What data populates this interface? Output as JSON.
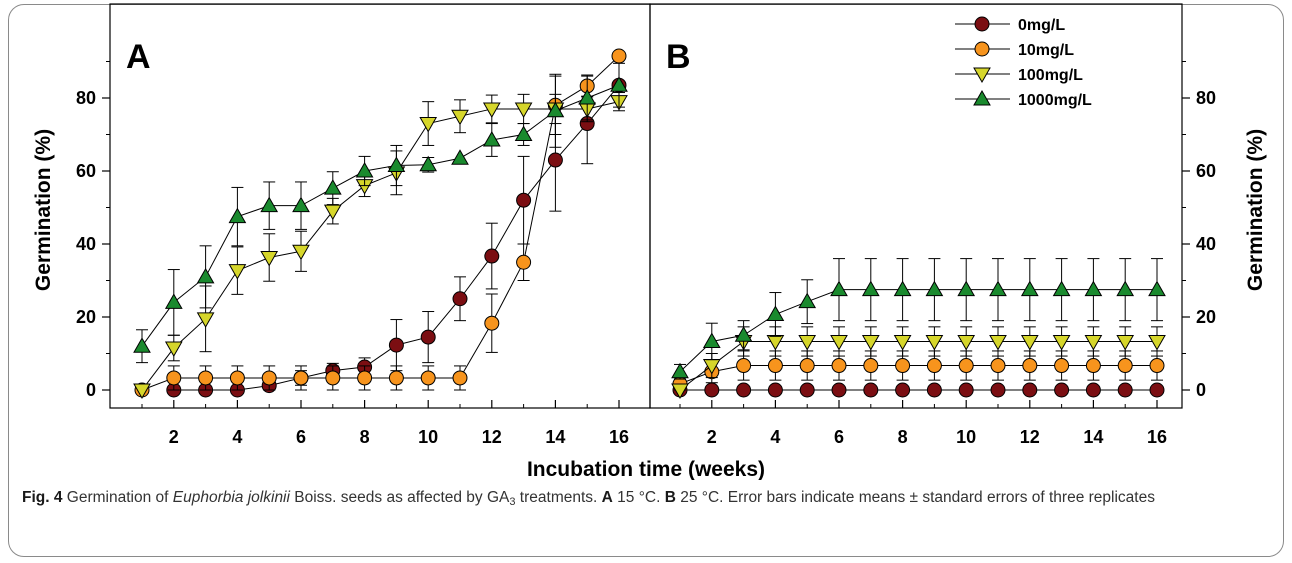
{
  "chart_data": {
    "type": "line",
    "xlabel": "Incubation time (weeks)",
    "ylabel": "Germination (%)",
    "xlim": [
      0,
      17
    ],
    "ylim": [
      -5,
      95
    ],
    "xticks": [
      2,
      4,
      6,
      8,
      10,
      12,
      14,
      16
    ],
    "yticks": [
      0,
      20,
      40,
      60,
      80
    ],
    "legend_position": "top-right of panel B",
    "panels": [
      {
        "label": "A",
        "series": [
          {
            "name": "0mg/L",
            "color": "#7b0e12",
            "marker": "circle",
            "x": [
              2,
              3,
              4,
              5,
              6,
              7,
              8,
              9,
              10,
              11,
              12,
              13,
              14,
              15,
              16
            ],
            "y": [
              0,
              0,
              0,
              1.2,
              3.3,
              5.3,
              6.3,
              12.3,
              14.5,
              25,
              36.7,
              52,
              63,
              73,
              83.5
            ],
            "err": [
              0,
              0,
              0,
              1.2,
              2,
              2,
              2.5,
              7,
              7,
              6,
              9,
              12,
              14,
              11,
              0
            ]
          },
          {
            "name": "10mg/L",
            "color": "#f7941d",
            "marker": "circle",
            "x": [
              1,
              2,
              3,
              4,
              5,
              6,
              7,
              8,
              9,
              10,
              11,
              12,
              13,
              14,
              15,
              16
            ],
            "y": [
              0,
              3.3,
              3.3,
              3.3,
              3.3,
              3.3,
              3.3,
              3.3,
              3.3,
              3.3,
              3.3,
              18.3,
              35,
              78,
              83.3,
              91.5
            ],
            "err": [
              0,
              3.3,
              3.3,
              3.3,
              3.3,
              3.3,
              3.3,
              3.3,
              3.3,
              3.3,
              3.3,
              8,
              5,
              8,
              3,
              0
            ]
          },
          {
            "name": "100mg/L",
            "color": "#d6d62b",
            "marker": "triangle-down",
            "x": [
              1,
              2,
              3,
              4,
              5,
              6,
              7,
              8,
              9,
              10,
              11,
              12,
              13,
              14,
              15,
              16
            ],
            "y": [
              0,
              11.5,
              19.5,
              32.7,
              36.3,
              38,
              49,
              56,
              59.5,
              73,
              75,
              77,
              77,
              77,
              77,
              79
            ],
            "err": [
              0,
              3.5,
              9,
              6.5,
              6.5,
              5.5,
              3.5,
              3,
              6,
              6,
              4.5,
              3.8,
              4,
              4,
              3.5,
              2.5
            ]
          },
          {
            "name": "1000mg/L",
            "color": "#1a8a2e",
            "marker": "triangle-up",
            "x": [
              1,
              2,
              3,
              4,
              5,
              6,
              7,
              8,
              9,
              10,
              11,
              12,
              13,
              14,
              15,
              16
            ],
            "y": [
              12,
              24,
              31,
              47.5,
              50.5,
              50.5,
              55.3,
              60,
              61.5,
              61.7,
              63.5,
              68.5,
              70,
              76.5,
              80,
              83.5
            ],
            "err": [
              4.5,
              9,
              8.5,
              8,
              6.5,
              6.5,
              4.5,
              4,
              5.5,
              2,
              0,
              4.5,
              3,
              10,
              6,
              6
            ]
          }
        ]
      },
      {
        "label": "B",
        "series": [
          {
            "name": "0mg/L",
            "color": "#7b0e12",
            "marker": "circle",
            "x": [
              1,
              2,
              3,
              4,
              5,
              6,
              7,
              8,
              9,
              10,
              11,
              12,
              13,
              14,
              15,
              16
            ],
            "y": [
              0,
              0,
              0,
              0,
              0,
              0,
              0,
              0,
              0,
              0,
              0,
              0,
              0,
              0,
              0,
              0
            ],
            "err": [
              0,
              0,
              0,
              0,
              0,
              0,
              0,
              0,
              0,
              0,
              0,
              0,
              0,
              0,
              0,
              0
            ]
          },
          {
            "name": "10mg/L",
            "color": "#f7941d",
            "marker": "circle",
            "x": [
              1,
              2,
              3,
              4,
              5,
              6,
              7,
              8,
              9,
              10,
              11,
              12,
              13,
              14,
              15,
              16
            ],
            "y": [
              1.7,
              5,
              6.7,
              6.7,
              6.7,
              6.7,
              6.7,
              6.7,
              6.7,
              6.7,
              6.7,
              6.7,
              6.7,
              6.7,
              6.7,
              6.7
            ],
            "err": [
              1.7,
              3,
              4,
              4,
              4,
              4,
              4,
              4,
              4,
              4,
              4,
              4,
              4,
              4,
              4,
              4
            ]
          },
          {
            "name": "100mg/L",
            "color": "#d6d62b",
            "marker": "triangle-down",
            "x": [
              1,
              2,
              3,
              4,
              5,
              6,
              7,
              8,
              9,
              10,
              11,
              12,
              13,
              14,
              15,
              16
            ],
            "y": [
              0,
              6.7,
              13.3,
              13.3,
              13.3,
              13.3,
              13.3,
              13.3,
              13.3,
              13.3,
              13.3,
              13.3,
              13.3,
              13.3,
              13.3,
              13.3
            ],
            "err": [
              0,
              3.3,
              4,
              4,
              4,
              4,
              4,
              4,
              4,
              4,
              4,
              4,
              4,
              4,
              4,
              4
            ]
          },
          {
            "name": "1000mg/L",
            "color": "#1a8a2e",
            "marker": "triangle-up",
            "x": [
              1,
              2,
              3,
              4,
              5,
              6,
              7,
              8,
              9,
              10,
              11,
              12,
              13,
              14,
              15,
              16
            ],
            "y": [
              5,
              13.3,
              15,
              20.7,
              24.2,
              27.5,
              27.5,
              27.5,
              27.5,
              27.5,
              27.5,
              27.5,
              27.5,
              27.5,
              27.5,
              27.5
            ],
            "err": [
              2,
              5,
              4,
              6,
              6,
              8.5,
              8.5,
              8.5,
              8.5,
              8.5,
              8.5,
              8.5,
              8.5,
              8.5,
              8.5,
              8.5
            ]
          }
        ]
      }
    ]
  },
  "caption": {
    "fig_label": "Fig. 4",
    "text1": " Germination of ",
    "species": "Euphorbia jolkinii",
    "text2": " Boiss. seeds as affected by GA",
    "sub": "3",
    "text3": " treatments. ",
    "a_label": "A",
    "a_text": " 15 °C. ",
    "b_label": "B",
    "b_text": " 25 °C. Error bars indicate means ± standard errors of three replicates"
  }
}
